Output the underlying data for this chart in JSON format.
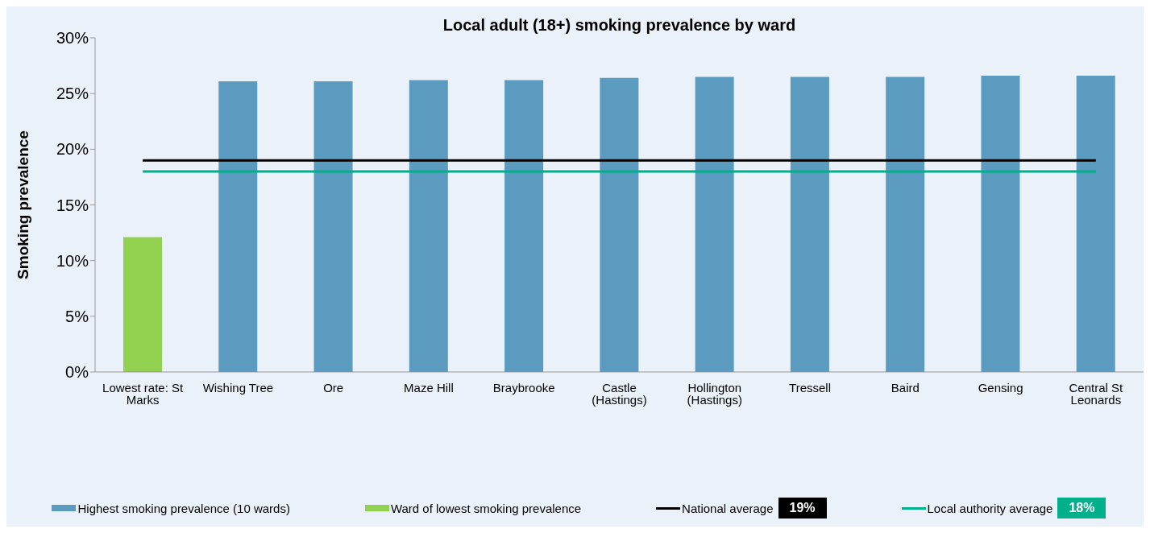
{
  "chart_data": {
    "type": "bar",
    "title": "Local adult (18+) smoking prevalence by ward",
    "ylabel": "Smoking prevalence",
    "categories": [
      "Lowest rate: St Marks",
      "Wishing Tree",
      "Ore",
      "Maze Hill",
      "Braybrooke",
      "Castle (Hastings)",
      "Hollington (Hastings)",
      "Tressell",
      "Baird",
      "Gensing",
      "Central St Leonards"
    ],
    "series": [
      {
        "name": "Highest smoking prevalence (10 wards)",
        "color": "#5b9bc0",
        "values": [
          null,
          26.1,
          26.1,
          26.2,
          26.2,
          26.4,
          26.5,
          26.5,
          26.5,
          26.6,
          26.6
        ]
      },
      {
        "name": "Ward of lowest smoking prevalence",
        "color": "#92d050",
        "values": [
          12.1,
          null,
          null,
          null,
          null,
          null,
          null,
          null,
          null,
          null,
          null
        ]
      },
      {
        "name": "National average",
        "type": "line",
        "color": "#000000",
        "values": [
          19,
          19,
          19,
          19,
          19,
          19,
          19,
          19,
          19,
          19,
          19
        ]
      },
      {
        "name": "Local authority average",
        "type": "line",
        "color": "#00b08a",
        "values": [
          18,
          18,
          18,
          18,
          18,
          18,
          18,
          18,
          18,
          18,
          18
        ]
      }
    ],
    "stacked": true,
    "annotations": [
      "19%",
      "18%"
    ],
    "ylim": [
      0,
      30
    ],
    "yticks": [
      {
        "value": 0,
        "label": "0%"
      },
      {
        "value": 5,
        "label": "5%"
      },
      {
        "value": 10,
        "label": "10%"
      },
      {
        "value": 15,
        "label": "15%"
      },
      {
        "value": 20,
        "label": "20%"
      },
      {
        "value": 25,
        "label": "25%"
      },
      {
        "value": 30,
        "label": "30%"
      }
    ],
    "grid": false,
    "legend": "bottom",
    "marker": "none",
    "line_style": "solid"
  }
}
